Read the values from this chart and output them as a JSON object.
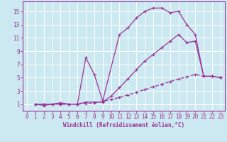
{
  "xlabel": "Windchill (Refroidissement éolien,°C)",
  "bg_color": "#cce8f0",
  "grid_color": "#ffffff",
  "line_color": "#993399",
  "xlim": [
    -0.5,
    23.5
  ],
  "ylim": [
    0,
    16.5
  ],
  "xticks": [
    0,
    1,
    2,
    3,
    4,
    5,
    6,
    7,
    8,
    9,
    10,
    11,
    12,
    13,
    14,
    15,
    16,
    17,
    18,
    19,
    20,
    21,
    22,
    23
  ],
  "yticks": [
    1,
    3,
    5,
    7,
    9,
    11,
    13,
    15
  ],
  "curve1_x": [
    1,
    2,
    3,
    4,
    5,
    6,
    7,
    8,
    9,
    11,
    12,
    13,
    14,
    15,
    16,
    17,
    18,
    19,
    20,
    21,
    22,
    23
  ],
  "curve1_y": [
    1,
    0.8,
    1.0,
    1.0,
    1.0,
    1.0,
    8.0,
    5.5,
    1.5,
    11.5,
    12.5,
    14.0,
    15.0,
    15.5,
    15.5,
    14.8,
    15.0,
    13.0,
    11.5,
    5.2,
    5.2,
    5.0
  ],
  "curve2_x": [
    1,
    2,
    3,
    4,
    5,
    6,
    7,
    8,
    9,
    10,
    11,
    12,
    13,
    14,
    15,
    16,
    17,
    18,
    19,
    20,
    21,
    22,
    23
  ],
  "curve2_y": [
    1,
    1.0,
    1.0,
    1.2,
    1.0,
    1.0,
    1.3,
    1.3,
    1.3,
    2.2,
    3.5,
    4.8,
    6.2,
    7.5,
    8.5,
    9.5,
    10.5,
    11.5,
    10.3,
    10.5,
    5.2,
    5.2,
    5.0
  ],
  "curve3_x": [
    1,
    2,
    3,
    4,
    5,
    6,
    7,
    8,
    9,
    10,
    11,
    12,
    13,
    14,
    15,
    16,
    17,
    18,
    19,
    20,
    21,
    22,
    23
  ],
  "curve3_y": [
    1,
    1.0,
    1.0,
    1.0,
    1.0,
    1.0,
    1.1,
    1.2,
    1.4,
    1.7,
    2.0,
    2.4,
    2.8,
    3.2,
    3.6,
    4.0,
    4.4,
    4.8,
    5.1,
    5.5,
    5.2,
    5.2,
    5.0
  ]
}
